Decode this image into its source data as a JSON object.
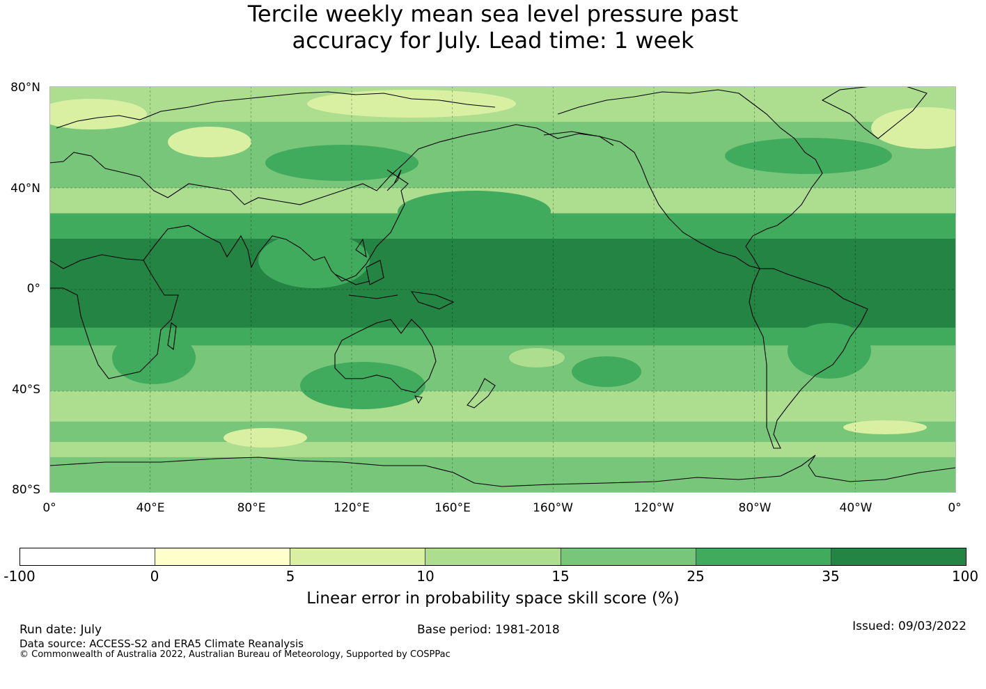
{
  "title": {
    "line1": "Tercile weekly mean sea level pressure past",
    "line2": "accuracy for July. Lead time: 1 week"
  },
  "map": {
    "lat_labels": [
      "80°N",
      "40°N",
      "0°",
      "40°S",
      "80°S"
    ],
    "lon_labels": [
      "0°",
      "40°E",
      "80°E",
      "120°E",
      "160°E",
      "160°W",
      "120°W",
      "80°W",
      "40°W",
      "0°"
    ],
    "bands": [
      {
        "from_lat": 80,
        "to_lat": 66,
        "value_class": 3
      },
      {
        "from_lat": 66,
        "to_lat": 52,
        "value_class": 4
      },
      {
        "from_lat": 52,
        "to_lat": 40,
        "value_class": 4
      },
      {
        "from_lat": 40,
        "to_lat": 30,
        "value_class": 3
      },
      {
        "from_lat": 30,
        "to_lat": 20,
        "value_class": 5
      },
      {
        "from_lat": 20,
        "to_lat": -15,
        "value_class": 6
      },
      {
        "from_lat": -15,
        "to_lat": -22,
        "value_class": 5
      },
      {
        "from_lat": -22,
        "to_lat": -40,
        "value_class": 4
      },
      {
        "from_lat": -40,
        "to_lat": -52,
        "value_class": 3
      },
      {
        "from_lat": -52,
        "to_lat": -60,
        "value_class": 4
      },
      {
        "from_lat": -60,
        "to_lat": -66,
        "value_class": 3
      },
      {
        "from_lat": -66,
        "to_lat": -80,
        "value_class": 4
      }
    ]
  },
  "legend": {
    "colors": [
      "#ffffff",
      "#ffffcc",
      "#d9f0a3",
      "#addd8e",
      "#78c679",
      "#41ab5d",
      "#238443"
    ],
    "ticks": [
      "-100",
      "0",
      "5",
      "10",
      "15",
      "25",
      "35",
      "100"
    ],
    "label": "Linear error in probability space skill score (%)"
  },
  "footer": {
    "run_date": "Run date: July",
    "base_period": "Base period: 1981-2018",
    "issued": "Issued: 09/03/2022",
    "data_source": "Data source: ACCESS-S2 and ERA5 Climate Reanalysis",
    "copyright": "© Commonwealth of Australia 2022, Australian Bureau of Meteorology, Supported by COSPPac"
  }
}
